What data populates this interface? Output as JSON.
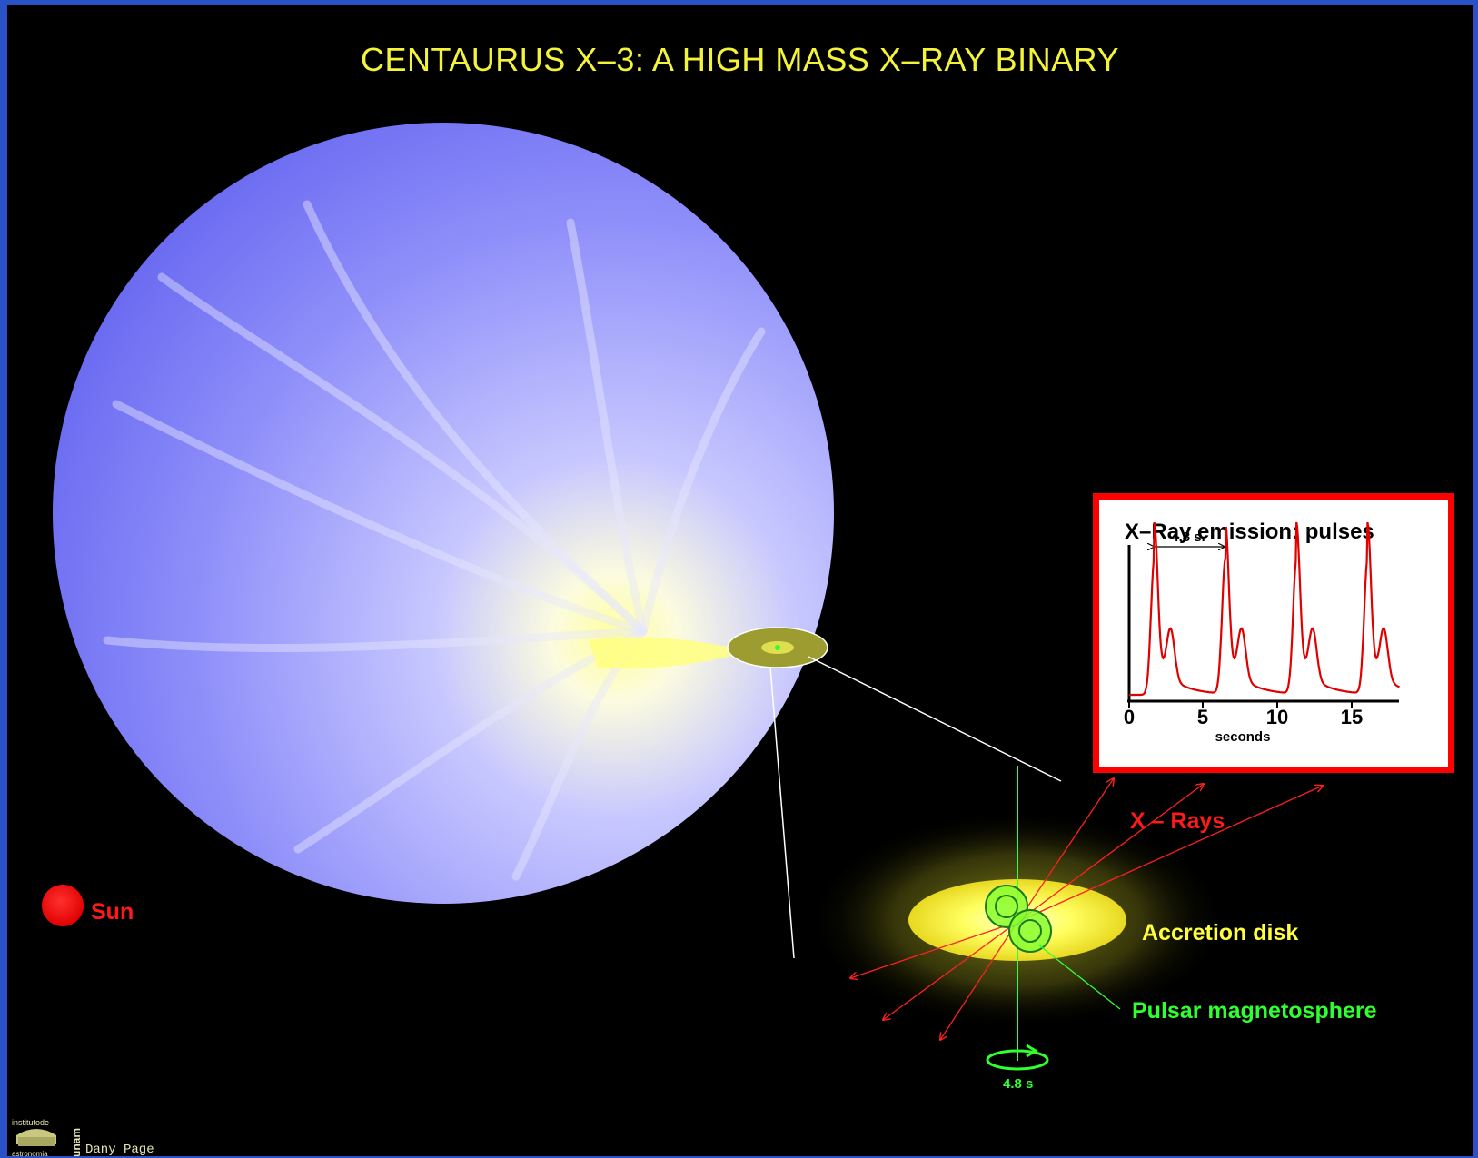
{
  "title": "CENTAURUS  X–3:   A HIGH MASS X–RAY BINARY",
  "labels": {
    "sun": "Sun",
    "xrays": "X – Rays",
    "accretion_disk": "Accretion disk",
    "pulsar_magnetosphere": "Pulsar magnetosphere",
    "rotation_period": "4.8 s"
  },
  "inset": {
    "title": "X–Ray emission:  pulses",
    "period_label": "4.8 s.",
    "xlabel": "seconds",
    "ticks": [
      "0",
      "5",
      "10",
      "15"
    ]
  },
  "credit": "Dany Page",
  "logo": {
    "text_top": "institutode",
    "text_bottom": "astronomia",
    "side_text": "unam"
  },
  "colors": {
    "background": "#000000",
    "frame": "#2a52c8",
    "title": "#f3f33a",
    "star": "#8080f8",
    "sun": "#ff0000",
    "xray": "#ff2020",
    "disk": "#ffff40",
    "magnetosphere": "#30ff30"
  }
}
